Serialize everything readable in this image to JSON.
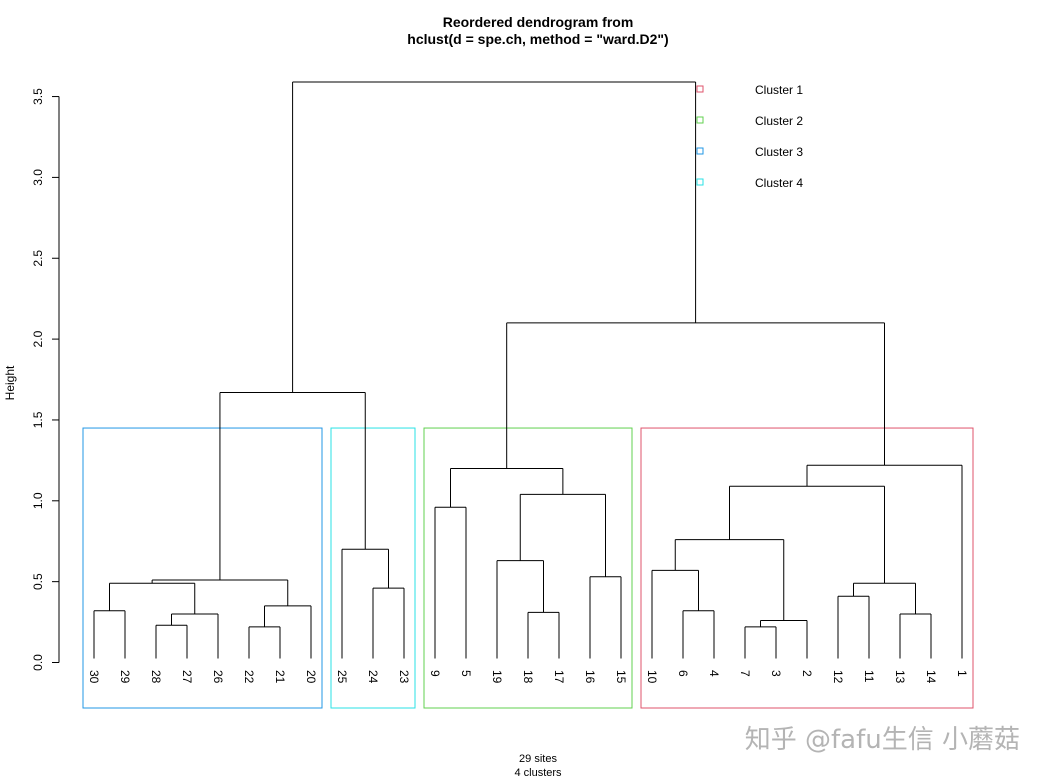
{
  "chart_data": {
    "type": "dendrogram",
    "title_line1": "Reordered dendrogram from",
    "title_line2": "hclust(d = spe.ch, method = \"ward.D2\")",
    "ylabel": "Height",
    "ylim": [
      0,
      3.6
    ],
    "y_ticks": [
      0.0,
      0.5,
      1.0,
      1.5,
      2.0,
      2.5,
      3.0,
      3.5
    ],
    "y_tick_labels": [
      "0.0",
      "0.5",
      "1.0",
      "1.5",
      "2.0",
      "2.5",
      "3.0",
      "3.5"
    ],
    "leaves": [
      "30",
      "29",
      "28",
      "27",
      "26",
      "22",
      "21",
      "20",
      "25",
      "24",
      "23",
      "9",
      "5",
      "19",
      "18",
      "17",
      "16",
      "15",
      "10",
      "6",
      "4",
      "7",
      "3",
      "2",
      "12",
      "11",
      "13",
      "14",
      "1"
    ],
    "merges": [
      {
        "id": "a1",
        "children": [
          "30",
          "29"
        ],
        "height": 0.32
      },
      {
        "id": "a2",
        "children": [
          "28",
          "27"
        ],
        "height": 0.23
      },
      {
        "id": "a3",
        "children": [
          "a2",
          "26"
        ],
        "height": 0.3
      },
      {
        "id": "a4",
        "children": [
          "a1",
          "a3"
        ],
        "height": 0.49
      },
      {
        "id": "a5",
        "children": [
          "22",
          "21"
        ],
        "height": 0.22
      },
      {
        "id": "a6",
        "children": [
          "a5",
          "20"
        ],
        "height": 0.35
      },
      {
        "id": "a7",
        "children": [
          "a4",
          "a6"
        ],
        "height": 0.51
      },
      {
        "id": "b1",
        "children": [
          "24",
          "23"
        ],
        "height": 0.46
      },
      {
        "id": "b2",
        "children": [
          "25",
          "b1"
        ],
        "height": 0.7
      },
      {
        "id": "ab",
        "children": [
          "a7",
          "b2"
        ],
        "height": 1.67
      },
      {
        "id": "c1",
        "children": [
          "9",
          "5"
        ],
        "height": 0.96
      },
      {
        "id": "c2",
        "children": [
          "18",
          "17"
        ],
        "height": 0.31
      },
      {
        "id": "c3",
        "children": [
          "19",
          "c2"
        ],
        "height": 0.63
      },
      {
        "id": "c4",
        "children": [
          "16",
          "15"
        ],
        "height": 0.53
      },
      {
        "id": "c5",
        "children": [
          "c3",
          "c4"
        ],
        "height": 1.04
      },
      {
        "id": "c6",
        "children": [
          "c1",
          "c5"
        ],
        "height": 1.2
      },
      {
        "id": "d1",
        "children": [
          "6",
          "4"
        ],
        "height": 0.32
      },
      {
        "id": "d2",
        "children": [
          "10",
          "d1"
        ],
        "height": 0.57
      },
      {
        "id": "d3",
        "children": [
          "7",
          "3"
        ],
        "height": 0.22
      },
      {
        "id": "d4",
        "children": [
          "d3",
          "2"
        ],
        "height": 0.26
      },
      {
        "id": "d5",
        "children": [
          "d2",
          "d4"
        ],
        "height": 0.76
      },
      {
        "id": "d6",
        "children": [
          "12",
          "11"
        ],
        "height": 0.41
      },
      {
        "id": "d7",
        "children": [
          "13",
          "14"
        ],
        "height": 0.3
      },
      {
        "id": "d8",
        "children": [
          "d6",
          "d7"
        ],
        "height": 0.49
      },
      {
        "id": "d9",
        "children": [
          "d5",
          "d8"
        ],
        "height": 1.09
      },
      {
        "id": "d10",
        "children": [
          "d9",
          "1"
        ],
        "height": 1.22
      },
      {
        "id": "cd",
        "children": [
          "c6",
          "d10"
        ],
        "height": 2.1
      },
      {
        "id": "root",
        "children": [
          "ab",
          "cd"
        ],
        "height": 3.59
      }
    ],
    "clusters": [
      {
        "name": "Cluster 1",
        "color": "#DF536B",
        "leaves": [
          "10",
          "6",
          "4",
          "7",
          "3",
          "2",
          "12",
          "11",
          "13",
          "14",
          "1"
        ]
      },
      {
        "name": "Cluster 2",
        "color": "#61D04F",
        "leaves": [
          "9",
          "5",
          "19",
          "18",
          "17",
          "16",
          "15"
        ]
      },
      {
        "name": "Cluster 3",
        "color": "#2297E6",
        "leaves": [
          "30",
          "29",
          "28",
          "27",
          "26",
          "22",
          "21",
          "20"
        ]
      },
      {
        "name": "Cluster 4",
        "color": "#28E2E5",
        "leaves": [
          "25",
          "24",
          "23"
        ]
      }
    ],
    "cluster_box_height": 1.45,
    "footer_line1": "29 sites",
    "footer_line2": "4 clusters",
    "grid": false,
    "legend_placement": "top-right"
  },
  "watermark": "知乎 @fafu生信 小蘑菇"
}
